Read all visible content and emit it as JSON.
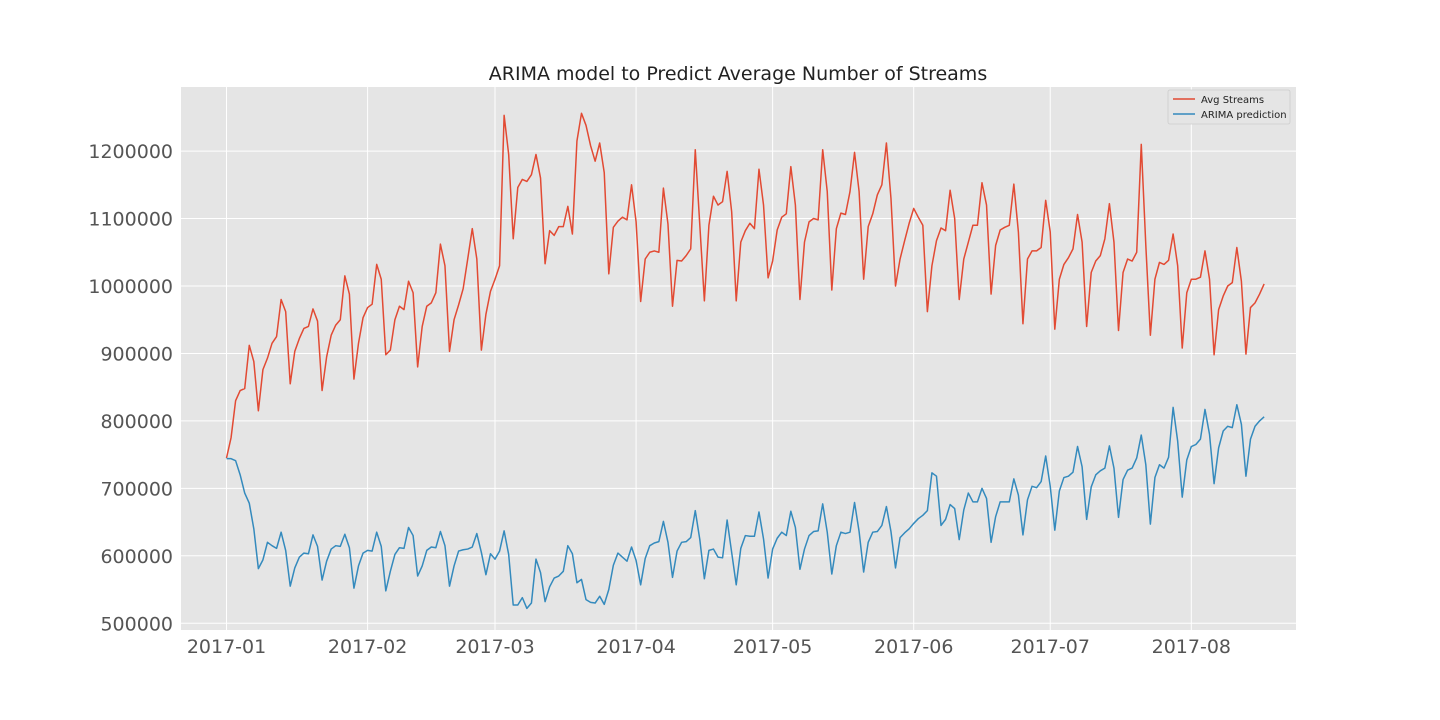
{
  "chart_data": {
    "type": "line",
    "title": "ARIMA model to Predict Average Number of Streams",
    "xlabel": "",
    "ylabel": "",
    "x_start": "2017-01-01",
    "x_end": "2017-08-18",
    "xlim": [
      "2016-12-22",
      "2017-08-24"
    ],
    "ylim": [
      490000,
      1295000
    ],
    "x_ticks": [
      {
        "date": "2017-01-01",
        "label": "2017-01"
      },
      {
        "date": "2017-02-01",
        "label": "2017-02"
      },
      {
        "date": "2017-03-01",
        "label": "2017-03"
      },
      {
        "date": "2017-04-01",
        "label": "2017-04"
      },
      {
        "date": "2017-05-01",
        "label": "2017-05"
      },
      {
        "date": "2017-06-01",
        "label": "2017-06"
      },
      {
        "date": "2017-07-01",
        "label": "2017-07"
      },
      {
        "date": "2017-08-01",
        "label": "2017-08"
      }
    ],
    "y_ticks": [
      {
        "value": 500000,
        "label": "500000"
      },
      {
        "value": 600000,
        "label": "600000"
      },
      {
        "value": 700000,
        "label": "700000"
      },
      {
        "value": 800000,
        "label": "800000"
      },
      {
        "value": 900000,
        "label": "900000"
      },
      {
        "value": 1000000,
        "label": "1000000"
      },
      {
        "value": 1100000,
        "label": "1100000"
      },
      {
        "value": 1200000,
        "label": "1200000"
      }
    ],
    "grid": true,
    "legend_position": "top-right",
    "series": [
      {
        "name": "Avg Streams",
        "color": "#e24a33",
        "values": [
          745000,
          775000,
          830000,
          845000,
          848000,
          912000,
          888000,
          815000,
          876000,
          893000,
          915000,
          925000,
          980000,
          962000,
          855000,
          903000,
          922000,
          937000,
          940000,
          966000,
          948000,
          845000,
          895000,
          927000,
          942000,
          950000,
          1015000,
          988000,
          862000,
          915000,
          953000,
          968000,
          973000,
          1032000,
          1010000,
          898000,
          905000,
          950000,
          970000,
          965000,
          1007000,
          990000,
          880000,
          940000,
          970000,
          975000,
          990000,
          1062000,
          1030000,
          903000,
          950000,
          972000,
          996000,
          1040000,
          1085000,
          1040000,
          905000,
          958000,
          992000,
          1010000,
          1030000,
          1253000,
          1195000,
          1070000,
          1146000,
          1158000,
          1155000,
          1165000,
          1195000,
          1160000,
          1033000,
          1082000,
          1075000,
          1088000,
          1088000,
          1118000,
          1077000,
          1215000,
          1256000,
          1238000,
          1208000,
          1185000,
          1212000,
          1168000,
          1018000,
          1087000,
          1096000,
          1102000,
          1098000,
          1150000,
          1095000,
          977000,
          1040000,
          1050000,
          1052000,
          1050000,
          1145000,
          1092000,
          970000,
          1038000,
          1037000,
          1045000,
          1055000,
          1202000,
          1090000,
          978000,
          1090000,
          1133000,
          1120000,
          1125000,
          1170000,
          1110000,
          978000,
          1065000,
          1082000,
          1093000,
          1085000,
          1173000,
          1120000,
          1012000,
          1037000,
          1083000,
          1102000,
          1107000,
          1177000,
          1120000,
          980000,
          1065000,
          1095000,
          1100000,
          1098000,
          1202000,
          1140000,
          994000,
          1085000,
          1108000,
          1106000,
          1140000,
          1198000,
          1140000,
          1010000,
          1088000,
          1107000,
          1135000,
          1150000,
          1212000,
          1130000,
          1000000,
          1040000,
          1067000,
          1093000,
          1115000,
          1102000,
          1090000,
          962000,
          1030000,
          1067000,
          1086000,
          1082000,
          1142000,
          1100000,
          980000,
          1040000,
          1065000,
          1090000,
          1090000,
          1153000,
          1120000,
          988000,
          1060000,
          1083000,
          1087000,
          1090000,
          1151000,
          1080000,
          944000,
          1040000,
          1052000,
          1052000,
          1057000,
          1127000,
          1080000,
          936000,
          1010000,
          1032000,
          1042000,
          1055000,
          1106000,
          1065000,
          940000,
          1020000,
          1037000,
          1045000,
          1070000,
          1122000,
          1065000,
          934000,
          1020000,
          1040000,
          1037000,
          1050000,
          1210000,
          1060000,
          927000,
          1010000,
          1035000,
          1032000,
          1038000,
          1077000,
          1030000,
          908000,
          990000,
          1010000,
          1010000,
          1013000,
          1052000,
          1010000,
          898000,
          965000,
          985000,
          1000000,
          1005000,
          1057000,
          1007000,
          899000,
          968000,
          975000,
          988000,
          1003000
        ]
      },
      {
        "name": "ARIMA prediction",
        "color": "#348abd",
        "values": [
          744000,
          744000,
          741000,
          720000,
          693000,
          678000,
          640000,
          581000,
          594000,
          620000,
          615000,
          611000,
          635000,
          608000,
          555000,
          582000,
          598000,
          604000,
          603000,
          631000,
          614000,
          564000,
          592000,
          610000,
          615000,
          614000,
          632000,
          612000,
          552000,
          585000,
          604000,
          608000,
          607000,
          635000,
          614000,
          548000,
          577000,
          602000,
          612000,
          611000,
          642000,
          630000,
          570000,
          585000,
          608000,
          613000,
          612000,
          636000,
          615000,
          555000,
          585000,
          607000,
          609000,
          610000,
          613000,
          633000,
          605000,
          572000,
          603000,
          595000,
          607000,
          637000,
          602000,
          527000,
          527000,
          538000,
          522000,
          530000,
          595000,
          575000,
          532000,
          554000,
          567000,
          570000,
          577000,
          615000,
          603000,
          560000,
          565000,
          535000,
          531000,
          530000,
          540000,
          528000,
          550000,
          586000,
          604000,
          598000,
          592000,
          613000,
          593000,
          557000,
          596000,
          615000,
          619000,
          621000,
          651000,
          620000,
          568000,
          607000,
          620000,
          621000,
          627000,
          667000,
          624000,
          566000,
          608000,
          610000,
          598000,
          597000,
          653000,
          605000,
          557000,
          611000,
          630000,
          629000,
          629000,
          665000,
          625000,
          567000,
          610000,
          626000,
          635000,
          630000,
          666000,
          642000,
          580000,
          610000,
          630000,
          636000,
          637000,
          677000,
          635000,
          573000,
          615000,
          635000,
          633000,
          635000,
          679000,
          636000,
          576000,
          620000,
          635000,
          636000,
          645000,
          673000,
          636000,
          582000,
          627000,
          634000,
          640000,
          648000,
          655000,
          660000,
          667000,
          723000,
          718000,
          645000,
          654000,
          676000,
          670000,
          624000,
          668000,
          693000,
          680000,
          680000,
          700000,
          685000,
          620000,
          658000,
          680000,
          680000,
          680000,
          714000,
          690000,
          631000,
          683000,
          703000,
          701000,
          710000,
          748000,
          703000,
          638000,
          696000,
          716000,
          718000,
          724000,
          762000,
          732000,
          654000,
          702000,
          720000,
          726000,
          730000,
          763000,
          730000,
          657000,
          713000,
          727000,
          730000,
          745000,
          779000,
          735000,
          647000,
          716000,
          735000,
          730000,
          746000,
          820000,
          770000,
          687000,
          742000,
          762000,
          765000,
          773000,
          817000,
          780000,
          707000,
          760000,
          785000,
          792000,
          790000,
          824000,
          795000,
          718000,
          773000,
          792000,
          800000,
          806000
        ]
      }
    ]
  }
}
